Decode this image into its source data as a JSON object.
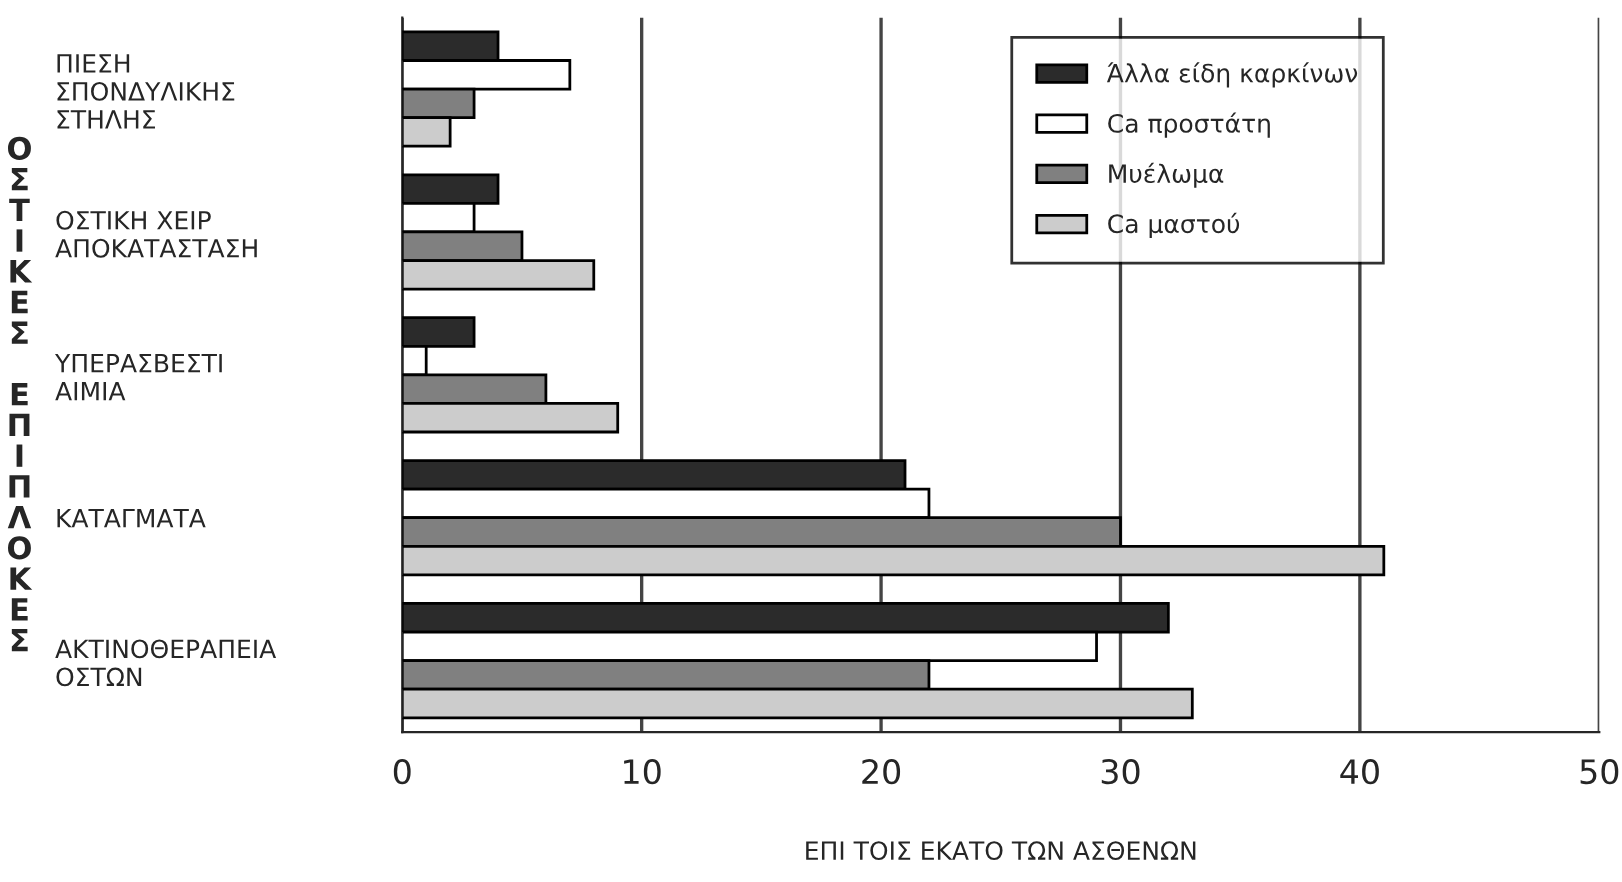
{
  "chart_data": {
    "type": "bar",
    "orientation": "horizontal",
    "xlabel": "ΕΠΙ ΤΟΙΣ ΕΚΑΤΟ ΤΩΝ ΑΣΘΕΝΩΝ",
    "ylabel": "ΟΣΤΙΚΕΣ ΕΠΙΠΛΟΚΕΣ",
    "categories": [
      "ΠΙΕΣΗ\nΣΠΟΝΔΥΛΙΚΗΣ\nΣΤΗΛΗΣ",
      "ΟΣΤΙΚΗ ΧΕΙΡ\nΑΠΟΚΑΤΑΣΤΑΣΗ",
      "ΥΠΕΡΑΣΒΕΣΤΙ\nΑΙΜΙΑ",
      "ΚΑΤΑΓΜΑΤΑ",
      "ΑΚΤΙΝΟΘΕΡΑΠΕΙΑ\nΟΣΤΩΝ"
    ],
    "series": [
      {
        "name": "Άλλα είδη καρκίνων",
        "color": "#2b2b2b",
        "values": [
          4,
          4,
          3,
          21,
          32
        ]
      },
      {
        "name": "Ca προστάτη",
        "color": "#ffffff",
        "values": [
          7,
          3,
          1,
          22,
          29
        ]
      },
      {
        "name": "Μυέλωμα",
        "color": "#808080",
        "values": [
          3,
          5,
          6,
          30,
          22
        ]
      },
      {
        "name": "Ca μαστού",
        "color": "#cccccc",
        "values": [
          2,
          8,
          9,
          41,
          33
        ]
      }
    ],
    "xlim": [
      0,
      50
    ],
    "xticks": [
      0,
      10,
      20,
      30,
      40,
      50
    ],
    "grid": "x",
    "legend": "top right"
  }
}
